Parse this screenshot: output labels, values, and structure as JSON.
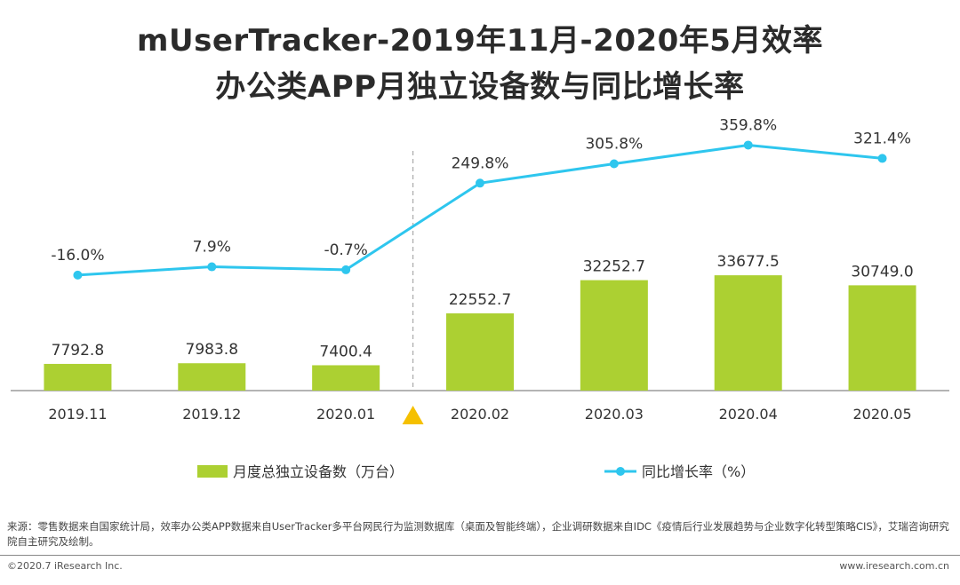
{
  "title_line1": "mUserTracker-2019年11月-2020年5月效率",
  "title_line2": "办公类APP月独立设备数与同比增长率",
  "chart_data": {
    "type": "bar",
    "categories": [
      "2019.11",
      "2019.12",
      "2020.01",
      "2020.02",
      "2020.03",
      "2020.04",
      "2020.05"
    ],
    "series": [
      {
        "name": "月度总独立设备数（万台）",
        "type": "bar",
        "values": [
          7792.8,
          7983.8,
          7400.4,
          22552.7,
          32252.7,
          33677.5,
          30749.0
        ],
        "labels": [
          "7792.8",
          "7983.8",
          "7400.4",
          "22552.7",
          "32252.7",
          "33677.5",
          "30749.0"
        ],
        "color": "#acd032"
      },
      {
        "name": "同比增长率（%）",
        "type": "line",
        "values": [
          -16.0,
          7.9,
          -0.7,
          249.8,
          305.8,
          359.8,
          321.4
        ],
        "labels": [
          "-16.0%",
          "7.9%",
          "-0.7%",
          "249.8%",
          "305.8%",
          "359.8%",
          "321.4%"
        ],
        "color": "#2ec6ee"
      }
    ],
    "bar_ylim": [
      0,
      70000
    ],
    "line_ylim": [
      -350,
      420
    ],
    "divider_after_category": "2020.01",
    "marker_color": "#f5c000",
    "legend_position": "bottom"
  },
  "source_text": "来源：零售数据来自国家统计局，效率办公类APP数据来自UserTracker多平台网民行为监测数据库（桌面及智能终端），企业调研数据来自IDC《疫情后行业发展趋势与企业数字化转型策略CIS》，艾瑞咨询研究院自主研究及绘制。",
  "footer_left": "©2020.7 iResearch Inc.",
  "footer_right": "www.iresearch.com.cn"
}
